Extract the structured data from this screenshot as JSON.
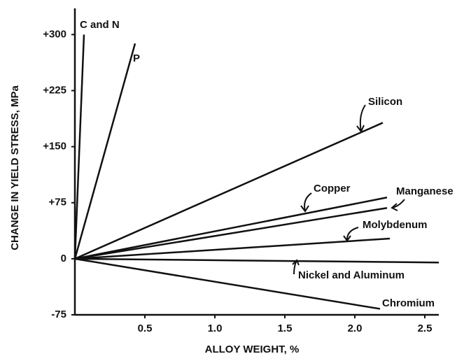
{
  "chart_data": {
    "type": "line",
    "xlabel": "ALLOY WEIGHT, %",
    "ylabel": "CHANGE IN YIELD STRESS, MPa",
    "xlim": [
      0,
      2.6
    ],
    "ylim": [
      -75,
      335
    ],
    "xticks": [
      0.5,
      {
        "value": 1.0,
        "label": "1.0"
      },
      1.5,
      {
        "value": 2.0,
        "label": "2.0"
      },
      2.5
    ],
    "yticks": [
      -75,
      0,
      {
        "value": 75,
        "label": "+75"
      },
      {
        "value": 150,
        "label": "+150"
      },
      {
        "value": 225,
        "label": "+225"
      },
      {
        "value": 300,
        "label": "+300"
      }
    ],
    "series": [
      {
        "name": "C and N",
        "color": "#111111",
        "x": [
          0,
          0.065
        ],
        "values": [
          0,
          300
        ]
      },
      {
        "name": "P",
        "color": "#111111",
        "x": [
          0,
          0.43
        ],
        "values": [
          0,
          288
        ]
      },
      {
        "name": "Silicon",
        "color": "#111111",
        "x": [
          0,
          2.2
        ],
        "values": [
          0,
          182
        ]
      },
      {
        "name": "Copper",
        "color": "#111111",
        "x": [
          0,
          2.23
        ],
        "values": [
          0,
          82
        ]
      },
      {
        "name": "Manganese",
        "color": "#111111",
        "x": [
          0,
          2.23
        ],
        "values": [
          0,
          68
        ]
      },
      {
        "name": "Molybdenum",
        "color": "#111111",
        "x": [
          0,
          2.25
        ],
        "values": [
          0,
          27
        ]
      },
      {
        "name": "Nickel and Aluminum",
        "color": "#111111",
        "x": [
          0,
          2.6
        ],
        "values": [
          0,
          -5
        ]
      },
      {
        "name": "Chromium",
        "color": "#111111",
        "x": [
          0,
          2.18
        ],
        "values": [
          0,
          -67
        ]
      }
    ]
  }
}
